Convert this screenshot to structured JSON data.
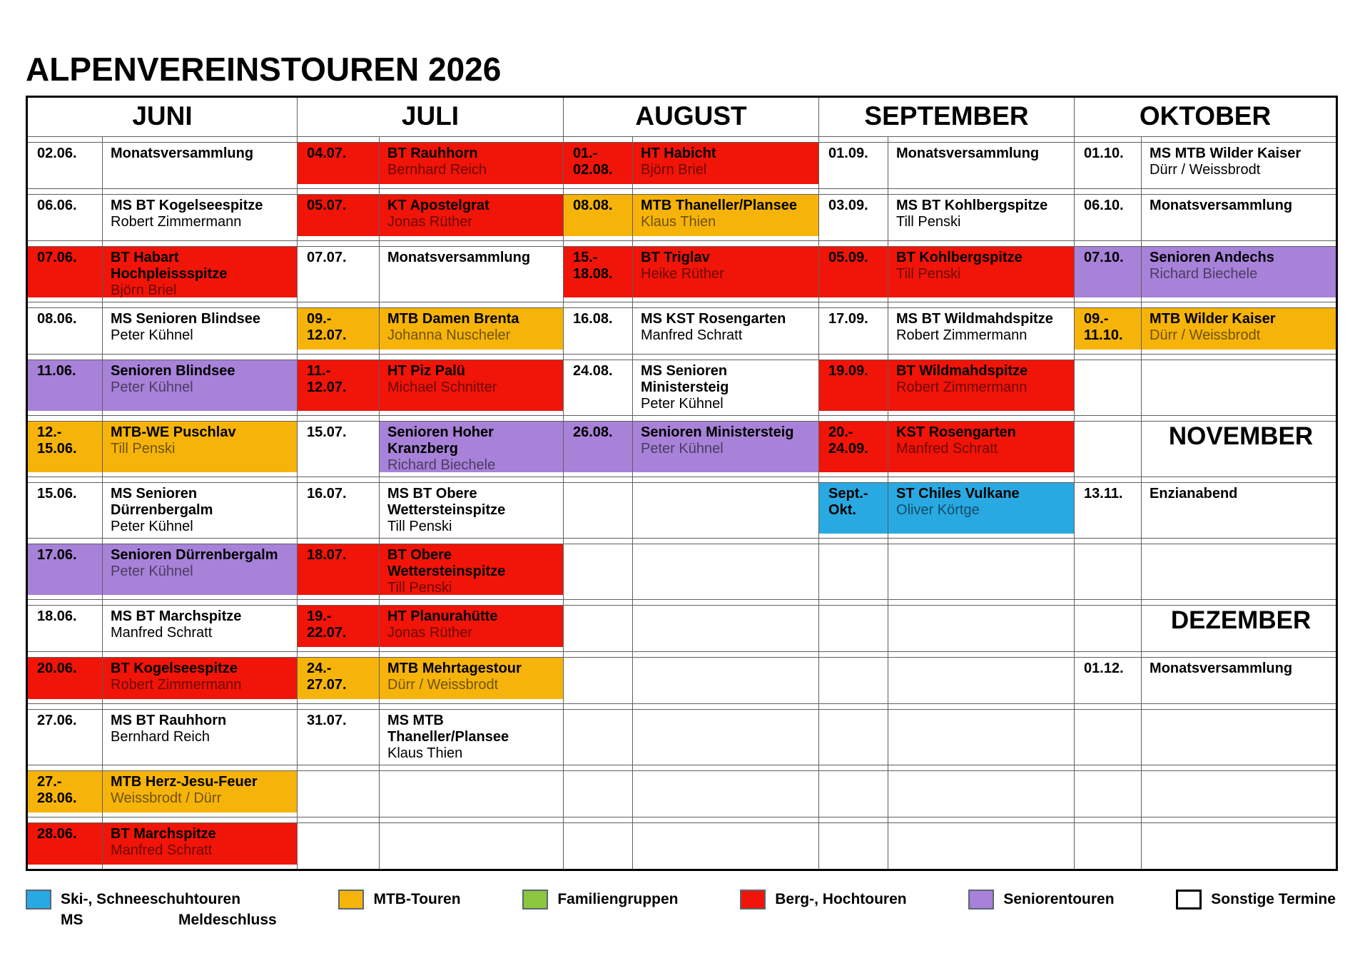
{
  "page_title": "ALPENVEREINSTOUREN 2026",
  "colors": {
    "white": "#ffffff",
    "red": "#f11408",
    "orange": "#f6b40a",
    "purple": "#a782d8",
    "blue": "#29a9e1",
    "green": "#8cc63f"
  },
  "table": {
    "months": [
      "JUNI",
      "JULI",
      "AUGUST",
      "SEPTEMBER",
      "OKTOBER"
    ],
    "rows": [
      [
        {
          "date": "02.06.",
          "title": "Monatsversammlung",
          "leader": "",
          "color": "white"
        },
        {
          "date": "04.07.",
          "title": "BT Rauhhorn",
          "leader": "Bernhard Reich",
          "color": "red"
        },
        {
          "date": "01.-\n02.08.",
          "title": "HT Habicht",
          "leader": "Björn Briel",
          "color": "red"
        },
        {
          "date": "01.09.",
          "title": "Monatsversammlung",
          "leader": "",
          "color": "white"
        },
        {
          "date": "01.10.",
          "title": "MS MTB Wilder Kaiser",
          "leader": "Dürr / Weissbrodt",
          "color": "white"
        }
      ],
      [
        {
          "date": "06.06.",
          "title": "MS BT Kogelseespitze",
          "leader": "Robert Zimmermann",
          "color": "white"
        },
        {
          "date": "05.07.",
          "title": "KT Apostelgrat",
          "leader": "Jonas Rüther",
          "color": "red"
        },
        {
          "date": "08.08.",
          "title": "MTB Thaneller/Plansee",
          "leader": "Klaus Thien",
          "color": "orange"
        },
        {
          "date": "03.09.",
          "title": "MS BT Kohlbergspitze",
          "leader": "Till Penski",
          "color": "white"
        },
        {
          "date": "06.10.",
          "title": "Monatsversammlung",
          "leader": "",
          "color": "white"
        }
      ],
      [
        {
          "date": "07.06.",
          "title": "BT Habart Hochpleissspitze",
          "leader": "Björn Briel",
          "color": "red"
        },
        {
          "date": "07.07.",
          "title": "Monatsversammlung",
          "leader": "",
          "color": "white"
        },
        {
          "date": "15.-\n18.08.",
          "title": "BT Triglav",
          "leader": "Heike Rüther",
          "color": "red"
        },
        {
          "date": "05.09.",
          "title": "BT Kohlbergspitze",
          "leader": "Till Penski",
          "color": "red"
        },
        {
          "date": "07.10.",
          "title": "Senioren Andechs",
          "leader": "Richard Biechele",
          "color": "purple"
        }
      ],
      [
        {
          "date": "08.06.",
          "title": "MS Senioren Blindsee",
          "leader": "Peter Kühnel",
          "color": "white"
        },
        {
          "date": "09.-\n12.07.",
          "title": "MTB Damen Brenta",
          "leader": "Johanna Nuscheler",
          "color": "orange"
        },
        {
          "date": "16.08.",
          "title": "MS KST Rosengarten",
          "leader": "Manfred Schratt",
          "color": "white"
        },
        {
          "date": "17.09.",
          "title": "MS BT Wildmahdspitze",
          "leader": "Robert Zimmermann",
          "color": "white"
        },
        {
          "date": "09.-\n11.10.",
          "title": "MTB Wilder Kaiser",
          "leader": "Dürr / Weissbrodt",
          "color": "orange"
        }
      ],
      [
        {
          "date": "11.06.",
          "title": "Senioren Blindsee",
          "leader": "Peter Kühnel",
          "color": "purple"
        },
        {
          "date": "11.-\n12.07.",
          "title": "HT Piz Palü",
          "leader": "Michael Schnitter",
          "color": "red"
        },
        {
          "date": "24.08.",
          "title": "MS Senioren Ministersteig",
          "leader": "Peter Kühnel",
          "color": "white"
        },
        {
          "date": "19.09.",
          "title": "BT Wildmahdspitze",
          "leader": "Robert Zimmermann",
          "color": "red"
        },
        null
      ],
      [
        {
          "date": "12.-\n15.06.",
          "title": "MTB-WE Puschlav",
          "leader": "Till Penski",
          "color": "orange"
        },
        {
          "date": "15.07.",
          "title": "Senioren Hoher Kranzberg",
          "leader": "Richard Biechele",
          "color": "purple",
          "date_color": "white"
        },
        {
          "date": "26.08.",
          "title": "Senioren Ministersteig",
          "leader": "Peter Kühnel",
          "color": "purple"
        },
        {
          "date": "20.-\n24.09.",
          "title": "KST Rosengarten",
          "leader": "Manfred Schratt",
          "color": "red"
        },
        {
          "subheader": "NOVEMBER"
        }
      ],
      [
        {
          "date": "15.06.",
          "title": "MS Senioren Dürrenbergalm",
          "leader": "Peter Kühnel",
          "color": "white"
        },
        {
          "date": "16.07.",
          "title": "MS BT Obere Wettersteinspitze",
          "leader": "Till Penski",
          "color": "white"
        },
        null,
        {
          "date": "Sept.-\nOkt.",
          "title": "ST Chiles Vulkane",
          "leader": "Oliver Körtge",
          "color": "blue"
        },
        {
          "date": "13.11.",
          "title": "Enzianabend",
          "leader": "",
          "color": "white"
        }
      ],
      [
        {
          "date": "17.06.",
          "title": "Senioren Dürrenbergalm",
          "leader": "Peter Kühnel",
          "color": "purple"
        },
        {
          "date": "18.07.",
          "title": "BT Obere Wettersteinspitze",
          "leader": "Till Penski",
          "color": "red"
        },
        null,
        null,
        null
      ],
      [
        {
          "date": "18.06.",
          "title": "MS BT Marchspitze",
          "leader": "Manfred Schratt",
          "color": "white"
        },
        {
          "date": "19.-\n22.07.",
          "title": "HT Planurahütte",
          "leader": "Jonas Rüther",
          "color": "red"
        },
        null,
        null,
        {
          "subheader": "DEZEMBER"
        }
      ],
      [
        {
          "date": "20.06.",
          "title": "BT Kogelseespitze",
          "leader": "Robert Zimmermann",
          "color": "red"
        },
        {
          "date": "24.-\n27.07.",
          "title": "MTB Mehrtagestour",
          "leader": "Dürr / Weissbrodt",
          "color": "orange"
        },
        null,
        null,
        {
          "date": "01.12.",
          "title": "Monatsversammlung",
          "leader": "",
          "color": "white"
        }
      ],
      [
        {
          "date": "27.06.",
          "title": "MS BT Rauhhorn",
          "leader": "Bernhard Reich",
          "color": "white"
        },
        {
          "date": "31.07.",
          "title": "MS MTB Thaneller/Plansee",
          "leader": "Klaus Thien",
          "color": "white"
        },
        null,
        null,
        null
      ],
      [
        {
          "date": "27.-\n28.06.",
          "title": "MTB Herz-Jesu-Feuer",
          "leader": "Weissbrodt / Dürr",
          "color": "orange"
        },
        null,
        null,
        null,
        null
      ],
      [
        {
          "date": "28.06.",
          "title": "BT Marchspitze",
          "leader": "Manfred Schratt",
          "color": "red"
        },
        null,
        null,
        null,
        null
      ]
    ]
  },
  "legend": {
    "items": [
      {
        "label": "Ski-, Schneeschuhtouren",
        "color": "blue",
        "note_key": "MS",
        "note_label": "Meldeschluss"
      },
      {
        "label": "MTB-Touren",
        "color": "orange"
      },
      {
        "label": "Familiengruppen",
        "color": "green"
      },
      {
        "label": "Berg-, Hochtouren",
        "color": "red"
      },
      {
        "label": "Seniorentouren",
        "color": "purple"
      },
      {
        "label": "Sonstige Termine",
        "color": "white"
      }
    ]
  }
}
